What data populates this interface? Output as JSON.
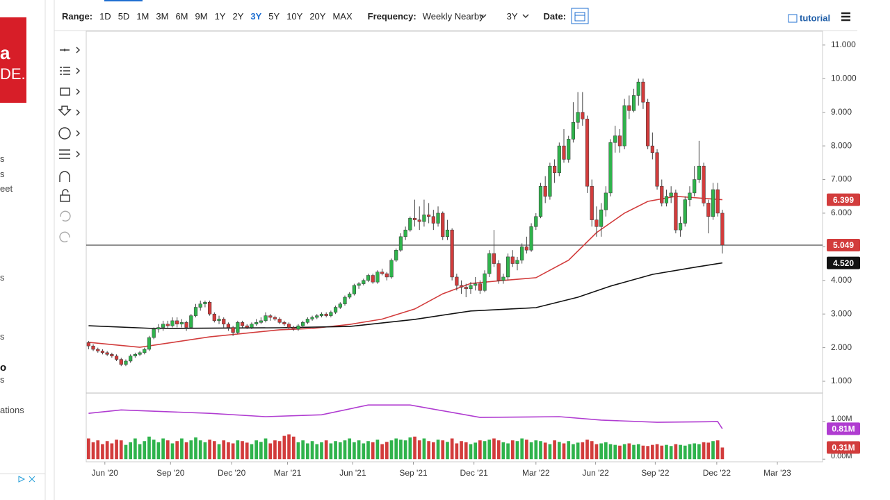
{
  "toolbar": {
    "range_label": "Range:",
    "ranges": [
      "1D",
      "5D",
      "1M",
      "3M",
      "6M",
      "9M",
      "1Y",
      "2Y",
      "3Y",
      "5Y",
      "10Y",
      "20Y",
      "MAX"
    ],
    "active_range": 8,
    "frequency_label": "Frequency:",
    "frequency": "Weekly Nearby",
    "period": "3Y",
    "date_label": "Date:",
    "tutorial": "tutorial"
  },
  "sidebar": {
    "logo": [
      "a",
      "DE."
    ],
    "items": [
      "s",
      "s",
      "eet",
      "s",
      "s",
      "o",
      "s",
      "ations"
    ]
  },
  "chart_data": {
    "type": "candlestick",
    "up_color": "#2fb34c",
    "down_color": "#d23c3c",
    "xlim": [
      -0.5,
      157.5
    ],
    "xticks": [
      {
        "value": 3.5,
        "label": "Jun '20"
      },
      {
        "value": 17.6,
        "label": "Sep '20"
      },
      {
        "value": 30.7,
        "label": "Dec '20"
      },
      {
        "value": 42.7,
        "label": "Mar '21"
      },
      {
        "value": 56.7,
        "label": "Jun '21"
      },
      {
        "value": 69.7,
        "label": "Sep '21"
      },
      {
        "value": 82.7,
        "label": "Dec '21"
      },
      {
        "value": 96,
        "label": "Mar '22"
      },
      {
        "value": 108.8,
        "label": "Jun '22"
      },
      {
        "value": 121.6,
        "label": "Sep '22"
      },
      {
        "value": 134.8,
        "label": "Dec '22"
      },
      {
        "value": 147.8,
        "label": "Mar '23"
      }
    ],
    "ylim": [
      0.67,
      11.41
    ],
    "yticks": [
      {
        "value": 11,
        "label": "11.000"
      },
      {
        "value": 10,
        "label": "10.000"
      },
      {
        "value": 9,
        "label": "9.000"
      },
      {
        "value": 8,
        "label": "8.000"
      },
      {
        "value": 7,
        "label": "7.000"
      },
      {
        "value": 6,
        "label": "6.000"
      },
      {
        "value": 5,
        "label": "5.000"
      },
      {
        "value": 4,
        "label": "4.000"
      },
      {
        "value": 3,
        "label": "3.000"
      },
      {
        "value": 2,
        "label": "2.000"
      },
      {
        "value": 1,
        "label": "1.000"
      }
    ],
    "ohlc": [
      [
        2.15,
        2.2,
        1.95,
        2.05
      ],
      [
        2.05,
        2.1,
        1.9,
        1.95
      ],
      [
        1.95,
        2.0,
        1.85,
        1.9
      ],
      [
        1.9,
        1.95,
        1.8,
        1.85
      ],
      [
        1.85,
        1.9,
        1.75,
        1.8
      ],
      [
        1.8,
        1.85,
        1.7,
        1.75
      ],
      [
        1.75,
        1.8,
        1.6,
        1.65
      ],
      [
        1.65,
        1.7,
        1.45,
        1.5
      ],
      [
        1.5,
        1.65,
        1.45,
        1.6
      ],
      [
        1.6,
        1.8,
        1.55,
        1.75
      ],
      [
        1.75,
        1.85,
        1.7,
        1.8
      ],
      [
        1.8,
        1.9,
        1.75,
        1.85
      ],
      [
        1.85,
        2.0,
        1.8,
        1.95
      ],
      [
        1.95,
        2.35,
        1.9,
        2.3
      ],
      [
        2.3,
        2.6,
        2.25,
        2.55
      ],
      [
        2.55,
        2.7,
        2.45,
        2.6
      ],
      [
        2.6,
        2.8,
        2.5,
        2.7
      ],
      [
        2.7,
        2.8,
        2.55,
        2.65
      ],
      [
        2.65,
        2.9,
        2.6,
        2.8
      ],
      [
        2.8,
        2.9,
        2.6,
        2.7
      ],
      [
        2.7,
        2.85,
        2.6,
        2.75
      ],
      [
        2.75,
        2.8,
        2.5,
        2.6
      ],
      [
        2.6,
        3.0,
        2.55,
        2.95
      ],
      [
        2.95,
        3.3,
        2.9,
        3.2
      ],
      [
        3.2,
        3.4,
        3.1,
        3.3
      ],
      [
        3.3,
        3.4,
        3.2,
        3.35
      ],
      [
        3.35,
        3.4,
        2.95,
        3.0
      ],
      [
        3.0,
        3.05,
        2.75,
        2.8
      ],
      [
        2.8,
        2.95,
        2.7,
        2.85
      ],
      [
        2.85,
        2.9,
        2.6,
        2.7
      ],
      [
        2.7,
        2.75,
        2.5,
        2.6
      ],
      [
        2.6,
        2.65,
        2.35,
        2.45
      ],
      [
        2.45,
        2.8,
        2.4,
        2.75
      ],
      [
        2.75,
        2.8,
        2.6,
        2.65
      ],
      [
        2.65,
        2.7,
        2.55,
        2.6
      ],
      [
        2.6,
        2.75,
        2.55,
        2.7
      ],
      [
        2.7,
        2.85,
        2.65,
        2.75
      ],
      [
        2.75,
        2.9,
        2.7,
        2.8
      ],
      [
        2.8,
        3.05,
        2.75,
        2.95
      ],
      [
        2.95,
        3.0,
        2.8,
        2.9
      ],
      [
        2.9,
        2.95,
        2.8,
        2.85
      ],
      [
        2.85,
        2.9,
        2.7,
        2.75
      ],
      [
        2.75,
        2.8,
        2.65,
        2.7
      ],
      [
        2.7,
        2.75,
        2.55,
        2.6
      ],
      [
        2.6,
        2.65,
        2.5,
        2.55
      ],
      [
        2.55,
        2.7,
        2.5,
        2.65
      ],
      [
        2.65,
        2.8,
        2.6,
        2.75
      ],
      [
        2.75,
        2.9,
        2.7,
        2.85
      ],
      [
        2.85,
        2.95,
        2.8,
        2.9
      ],
      [
        2.9,
        3.0,
        2.85,
        2.95
      ],
      [
        2.95,
        3.05,
        2.9,
        3.0
      ],
      [
        3.0,
        3.05,
        2.9,
        2.95
      ],
      [
        2.95,
        3.1,
        2.9,
        3.05
      ],
      [
        3.05,
        3.25,
        3.0,
        3.2
      ],
      [
        3.2,
        3.35,
        3.15,
        3.3
      ],
      [
        3.3,
        3.55,
        3.25,
        3.5
      ],
      [
        3.5,
        3.65,
        3.45,
        3.6
      ],
      [
        3.6,
        3.9,
        3.55,
        3.85
      ],
      [
        3.85,
        3.95,
        3.75,
        3.9
      ],
      [
        3.9,
        4.05,
        3.85,
        4.0
      ],
      [
        4.0,
        4.2,
        3.95,
        4.15
      ],
      [
        4.15,
        4.2,
        3.9,
        3.95
      ],
      [
        3.95,
        4.3,
        3.9,
        4.25
      ],
      [
        4.25,
        4.35,
        4.15,
        4.2
      ],
      [
        4.2,
        4.25,
        4.0,
        4.1
      ],
      [
        4.1,
        4.65,
        4.05,
        4.6
      ],
      [
        4.6,
        4.95,
        4.55,
        4.9
      ],
      [
        4.9,
        5.4,
        4.85,
        5.3
      ],
      [
        5.3,
        5.6,
        5.2,
        5.5
      ],
      [
        5.5,
        5.9,
        5.45,
        5.85
      ],
      [
        5.85,
        6.4,
        5.6,
        5.8
      ],
      [
        5.8,
        6.2,
        5.5,
        5.75
      ],
      [
        5.75,
        6.4,
        5.6,
        5.95
      ],
      [
        5.95,
        6.3,
        5.7,
        5.9
      ],
      [
        5.9,
        6.1,
        5.5,
        5.7
      ],
      [
        5.7,
        6.2,
        5.6,
        6.0
      ],
      [
        6.0,
        6.05,
        5.2,
        5.3
      ],
      [
        5.3,
        5.8,
        5.2,
        5.5
      ],
      [
        5.5,
        5.55,
        4.0,
        4.1
      ],
      [
        4.1,
        4.2,
        3.7,
        3.85
      ],
      [
        3.85,
        4.0,
        3.6,
        3.8
      ],
      [
        3.8,
        3.9,
        3.5,
        3.75
      ],
      [
        3.75,
        3.95,
        3.6,
        3.85
      ],
      [
        3.85,
        4.1,
        3.7,
        3.9
      ],
      [
        3.9,
        4.0,
        3.6,
        3.7
      ],
      [
        3.7,
        4.3,
        3.65,
        4.2
      ],
      [
        4.2,
        4.9,
        4.1,
        4.8
      ],
      [
        4.8,
        5.5,
        4.4,
        4.5
      ],
      [
        4.5,
        4.6,
        3.9,
        4.0
      ],
      [
        4.0,
        4.2,
        3.9,
        4.1
      ],
      [
        4.1,
        4.8,
        4.0,
        4.7
      ],
      [
        4.7,
        4.9,
        4.4,
        4.5
      ],
      [
        4.5,
        4.7,
        4.3,
        4.6
      ],
      [
        4.6,
        5.1,
        4.5,
        5.0
      ],
      [
        5.0,
        5.3,
        4.8,
        4.9
      ],
      [
        4.9,
        5.7,
        4.85,
        5.6
      ],
      [
        5.6,
        6.0,
        5.5,
        5.9
      ],
      [
        5.9,
        6.9,
        5.85,
        6.8
      ],
      [
        6.8,
        7.1,
        6.3,
        6.5
      ],
      [
        6.5,
        7.5,
        6.4,
        7.4
      ],
      [
        7.4,
        7.6,
        6.9,
        7.2
      ],
      [
        7.2,
        8.1,
        7.1,
        8.0
      ],
      [
        8.0,
        8.5,
        7.5,
        7.6
      ],
      [
        7.6,
        8.3,
        7.5,
        8.2
      ],
      [
        8.2,
        9.3,
        8.1,
        8.7
      ],
      [
        8.7,
        9.6,
        8.5,
        9.0
      ],
      [
        9.0,
        9.6,
        8.6,
        8.8
      ],
      [
        8.8,
        8.9,
        6.6,
        6.8
      ],
      [
        6.8,
        7.0,
        5.6,
        5.8
      ],
      [
        5.8,
        6.2,
        5.3,
        5.6
      ],
      [
        5.6,
        6.3,
        5.3,
        6.1
      ],
      [
        6.1,
        6.8,
        5.9,
        6.6
      ],
      [
        6.6,
        8.2,
        6.5,
        8.1
      ],
      [
        8.1,
        8.6,
        7.8,
        8.3
      ],
      [
        8.3,
        8.5,
        7.8,
        8.0
      ],
      [
        8.0,
        9.4,
        7.9,
        9.2
      ],
      [
        9.2,
        9.5,
        8.8,
        9.05
      ],
      [
        9.05,
        9.7,
        9.0,
        9.5
      ],
      [
        9.5,
        10.0,
        9.2,
        9.9
      ],
      [
        9.9,
        10.0,
        9.1,
        9.3
      ],
      [
        9.3,
        9.4,
        7.9,
        8.0
      ],
      [
        8.0,
        8.4,
        7.6,
        7.8
      ],
      [
        7.8,
        7.9,
        6.7,
        6.8
      ],
      [
        6.8,
        7.0,
        6.2,
        6.3
      ],
      [
        6.3,
        6.7,
        6.2,
        6.5
      ],
      [
        6.5,
        6.8,
        6.3,
        6.6
      ],
      [
        6.6,
        6.7,
        5.4,
        5.5
      ],
      [
        5.5,
        5.9,
        5.3,
        5.7
      ],
      [
        5.7,
        6.5,
        5.6,
        6.4
      ],
      [
        6.4,
        6.8,
        6.2,
        6.6
      ],
      [
        6.6,
        7.4,
        6.5,
        7.0
      ],
      [
        7.0,
        8.15,
        6.9,
        7.4
      ],
      [
        7.4,
        7.5,
        6.2,
        6.3
      ],
      [
        6.3,
        6.4,
        5.4,
        5.9
      ],
      [
        5.9,
        6.9,
        5.8,
        6.7
      ],
      [
        6.7,
        6.9,
        5.9,
        6.0
      ],
      [
        6.0,
        6.1,
        4.8,
        5.049
      ]
    ],
    "moving_averages": [
      {
        "color": "#d23c3c",
        "x": [
          0,
          11,
          26,
          41,
          48,
          56,
          63,
          70,
          76,
          82,
          89,
          96,
          103,
          109,
          115,
          120,
          126,
          136
        ],
        "values": [
          2.16,
          2.01,
          2.32,
          2.53,
          2.57,
          2.69,
          2.85,
          3.15,
          3.6,
          3.91,
          4.0,
          4.08,
          4.6,
          5.42,
          6.0,
          6.35,
          6.5,
          6.399
        ]
      },
      {
        "color": "#111111",
        "x": [
          0,
          14,
          41,
          56,
          70,
          82,
          96,
          105,
          112,
          121,
          130,
          136
        ],
        "values": [
          2.65,
          2.57,
          2.59,
          2.63,
          2.84,
          3.09,
          3.19,
          3.5,
          3.83,
          4.18,
          4.39,
          4.52
        ]
      }
    ],
    "markers": {
      "values": [
        6.399,
        5.049,
        4.52
      ],
      "value_labels": [
        "6.399",
        "5.049",
        "4.520"
      ],
      "colors": [
        "#d23c3c",
        "#d23c3c",
        "#111111"
      ],
      "line": 1
    },
    "volume": {
      "ylim": [
        -0.07,
        1.74
      ],
      "yticks": [
        {
          "value": 0,
          "label": "0.00M"
        },
        {
          "value": 1,
          "label": "1.00M"
        }
      ],
      "values": [
        0.55,
        0.45,
        0.5,
        0.4,
        0.48,
        0.42,
        0.52,
        0.5,
        0.38,
        0.45,
        0.55,
        0.4,
        0.48,
        0.6,
        0.52,
        0.45,
        0.55,
        0.5,
        0.42,
        0.48,
        0.55,
        0.45,
        0.5,
        0.58,
        0.5,
        0.45,
        0.52,
        0.48,
        0.4,
        0.5,
        0.45,
        0.42,
        0.5,
        0.48,
        0.44,
        0.4,
        0.5,
        0.46,
        0.55,
        0.42,
        0.5,
        0.48,
        0.62,
        0.66,
        0.6,
        0.45,
        0.5,
        0.42,
        0.48,
        0.4,
        0.45,
        0.5,
        0.42,
        0.48,
        0.45,
        0.5,
        0.55,
        0.45,
        0.5,
        0.42,
        0.48,
        0.45,
        0.52,
        0.4,
        0.46,
        0.5,
        0.55,
        0.52,
        0.5,
        0.58,
        0.6,
        0.5,
        0.55,
        0.48,
        0.45,
        0.52,
        0.5,
        0.46,
        0.55,
        0.42,
        0.48,
        0.45,
        0.4,
        0.44,
        0.5,
        0.48,
        0.52,
        0.55,
        0.5,
        0.45,
        0.42,
        0.5,
        0.48,
        0.55,
        0.52,
        0.45,
        0.5,
        0.48,
        0.44,
        0.4,
        0.5,
        0.46,
        0.42,
        0.48,
        0.4,
        0.44,
        0.45,
        0.52,
        0.48,
        0.4,
        0.42,
        0.45,
        0.4,
        0.38,
        0.36,
        0.4,
        0.42,
        0.38,
        0.4,
        0.36,
        0.35,
        0.38,
        0.4,
        0.36,
        0.38,
        0.35,
        0.4,
        0.38,
        0.36,
        0.4,
        0.42,
        0.4,
        0.45,
        0.44,
        0.48,
        0.5,
        0.31
      ]
    },
    "open_interest": {
      "color": "#b03cd1",
      "x": [
        0,
        7,
        26,
        38,
        50,
        60,
        69,
        84,
        101,
        110,
        122,
        135,
        136
      ],
      "values": [
        1.22,
        1.31,
        1.22,
        1.13,
        1.18,
        1.44,
        1.44,
        1.11,
        1.13,
        1.04,
        0.98,
        1.0,
        0.81
      ]
    },
    "volume_markers": {
      "values": [
        0.81,
        0.31
      ],
      "value_labels": [
        "0.81M",
        "0.31M"
      ],
      "colors": [
        "#b03cd1",
        "#d23c3c"
      ]
    }
  }
}
